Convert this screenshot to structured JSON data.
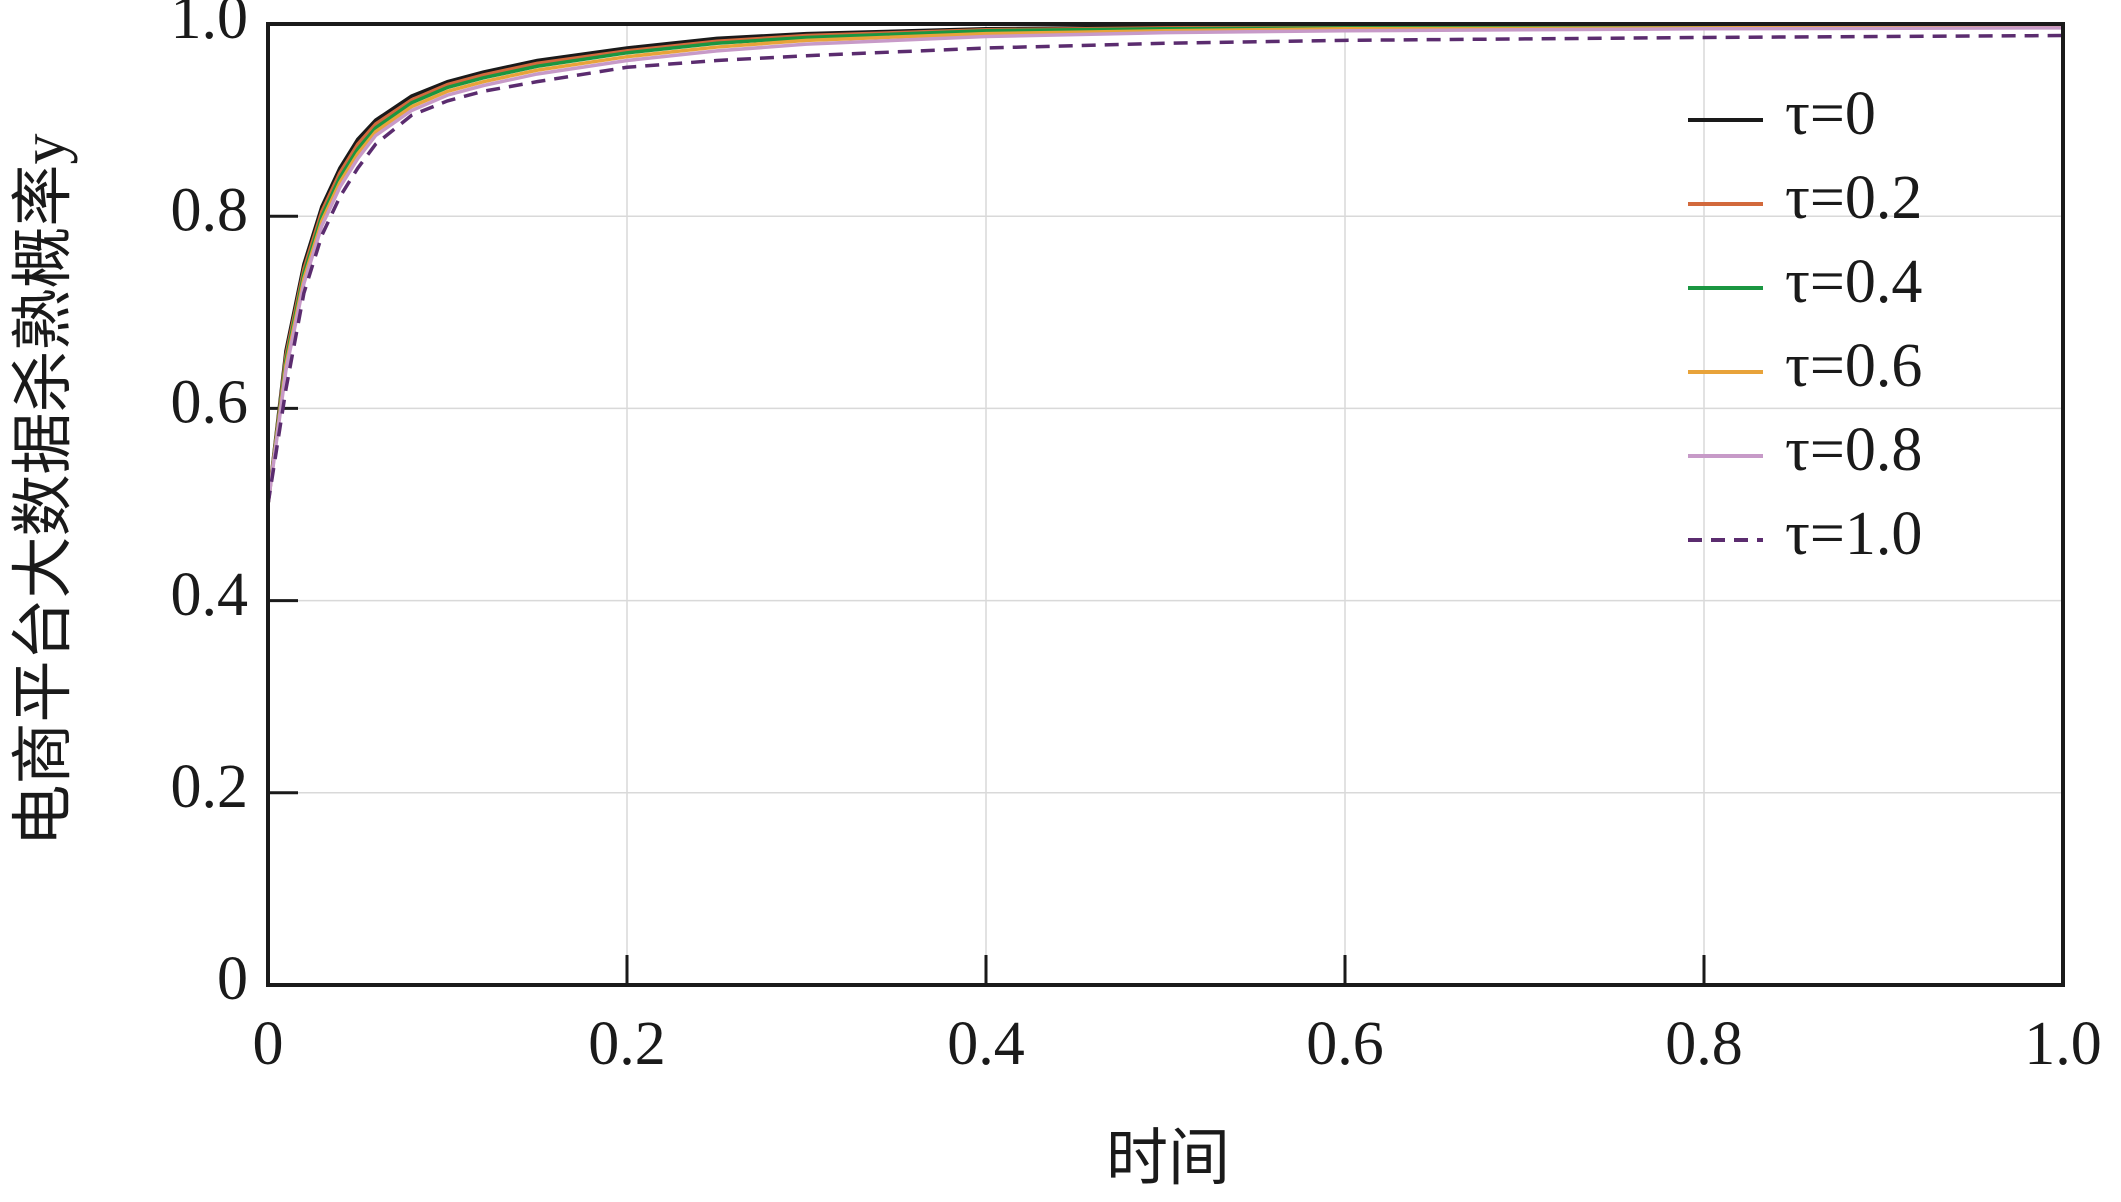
{
  "chart_data": {
    "type": "line",
    "xlabel": "时间",
    "ylabel": "电商平台大数据杀熟概率y",
    "x": [
      0,
      0.01,
      0.02,
      0.03,
      0.04,
      0.05,
      0.06,
      0.08,
      0.1,
      0.12,
      0.15,
      0.2,
      0.25,
      0.3,
      0.4,
      0.5,
      0.6,
      0.8,
      1.0
    ],
    "series": [
      {
        "name": "τ=0",
        "color": "#1a1a1a",
        "dash": false,
        "values": [
          0.5,
          0.66,
          0.75,
          0.81,
          0.85,
          0.88,
          0.9,
          0.925,
          0.94,
          0.95,
          0.962,
          0.975,
          0.985,
          0.99,
          0.995,
          0.997,
          0.998,
          0.999,
          1.0
        ]
      },
      {
        "name": "τ=0.2",
        "color": "#d2693c",
        "dash": false,
        "values": [
          0.5,
          0.655,
          0.745,
          0.805,
          0.845,
          0.875,
          0.896,
          0.921,
          0.937,
          0.947,
          0.959,
          0.972,
          0.982,
          0.988,
          0.994,
          0.996,
          0.997,
          0.998,
          0.999
        ]
      },
      {
        "name": "τ=0.4",
        "color": "#1a9641",
        "dash": false,
        "values": [
          0.5,
          0.65,
          0.74,
          0.8,
          0.84,
          0.87,
          0.892,
          0.918,
          0.934,
          0.944,
          0.956,
          0.97,
          0.98,
          0.986,
          0.993,
          0.995,
          0.996,
          0.997,
          0.998
        ]
      },
      {
        "name": "τ=0.6",
        "color": "#e8a33a",
        "dash": false,
        "values": [
          0.5,
          0.645,
          0.735,
          0.795,
          0.835,
          0.865,
          0.888,
          0.914,
          0.93,
          0.94,
          0.952,
          0.966,
          0.976,
          0.983,
          0.99,
          0.993,
          0.995,
          0.996,
          0.997
        ]
      },
      {
        "name": "τ=0.8",
        "color": "#c79ac8",
        "dash": false,
        "values": [
          0.5,
          0.64,
          0.73,
          0.79,
          0.83,
          0.86,
          0.884,
          0.91,
          0.926,
          0.936,
          0.948,
          0.962,
          0.972,
          0.979,
          0.987,
          0.991,
          0.993,
          0.995,
          0.996
        ]
      },
      {
        "name": "τ=1.0",
        "color": "#5b2c6f",
        "dash": true,
        "values": [
          0.5,
          0.62,
          0.72,
          0.78,
          0.82,
          0.85,
          0.875,
          0.905,
          0.92,
          0.93,
          0.94,
          0.955,
          0.962,
          0.967,
          0.975,
          0.98,
          0.983,
          0.986,
          0.988
        ]
      }
    ],
    "xlim": [
      0,
      1.0
    ],
    "ylim": [
      0,
      1.0
    ],
    "xticks": [
      0,
      0.2,
      0.4,
      0.6,
      0.8,
      {
        "value": 1,
        "label": "1.0"
      }
    ],
    "yticks": [
      0,
      0.2,
      0.4,
      0.6,
      0.8,
      {
        "value": 1,
        "label": "1.0"
      }
    ],
    "grid": true,
    "legend": "upper right"
  }
}
